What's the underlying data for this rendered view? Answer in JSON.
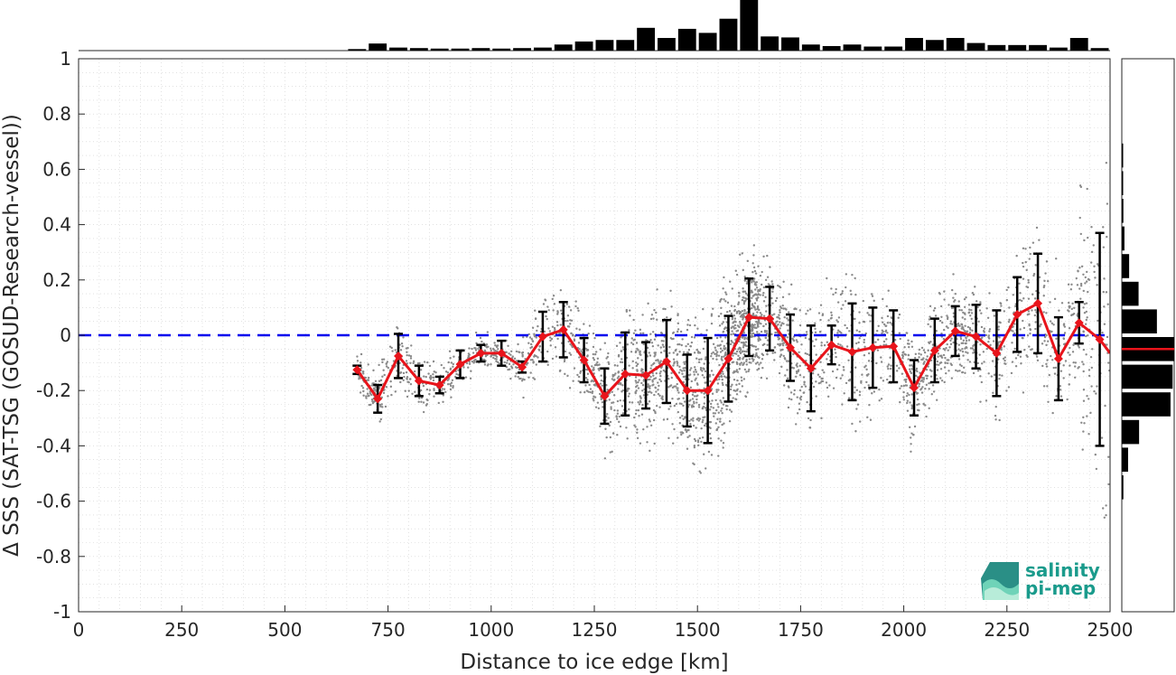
{
  "chart_data": {
    "type": "line",
    "xlabel": "Distance to ice edge [km]",
    "ylabel": "Δ SSS (SAT-TSG (GOSUD-Research-vessel))",
    "xlim": [
      0,
      2500
    ],
    "ylim": [
      -1,
      1
    ],
    "xticks": [
      0,
      250,
      500,
      750,
      1000,
      1250,
      1500,
      1750,
      2000,
      2250,
      2500
    ],
    "yticks": [
      -1,
      -0.8,
      -0.6,
      -0.4,
      -0.2,
      0,
      0.2,
      0.4,
      0.6,
      0.8,
      1
    ],
    "grid": true,
    "zero_line": {
      "y": 0,
      "color": "#0000ee",
      "style": "dashed"
    },
    "mean_series": {
      "color": "#e8141b",
      "x": [
        675,
        725,
        775,
        825,
        875,
        925,
        975,
        1025,
        1075,
        1125,
        1175,
        1225,
        1275,
        1325,
        1375,
        1425,
        1475,
        1525,
        1575,
        1625,
        1675,
        1725,
        1775,
        1825,
        1875,
        1925,
        1975,
        2025,
        2075,
        2125,
        2175,
        2225,
        2275,
        2325,
        2375,
        2425,
        2475,
        2500
      ],
      "y": [
        -0.125,
        -0.23,
        -0.075,
        -0.165,
        -0.18,
        -0.105,
        -0.065,
        -0.065,
        -0.115,
        -0.005,
        0.02,
        -0.09,
        -0.22,
        -0.14,
        -0.145,
        -0.095,
        -0.2,
        -0.2,
        -0.085,
        0.065,
        0.06,
        -0.045,
        -0.12,
        -0.035,
        -0.06,
        -0.045,
        -0.04,
        -0.19,
        -0.055,
        0.015,
        -0.005,
        -0.065,
        0.075,
        0.115,
        -0.085,
        0.045,
        -0.015,
        -0.065
      ],
      "err": [
        0.015,
        0.05,
        0.08,
        0.055,
        0.03,
        0.05,
        0.03,
        0.045,
        0.02,
        0.09,
        0.1,
        0.08,
        0.1,
        0.15,
        0.12,
        0.15,
        0.13,
        0.19,
        0.155,
        0.14,
        0.115,
        0.12,
        0.155,
        0.07,
        0.175,
        0.145,
        0.13,
        0.1,
        0.115,
        0.09,
        0.115,
        0.155,
        0.135,
        0.18,
        0.15,
        0.075,
        0.385,
        0
      ]
    },
    "x_histogram": {
      "bin_centers": [
        675,
        725,
        775,
        825,
        875,
        925,
        975,
        1025,
        1075,
        1125,
        1175,
        1225,
        1275,
        1325,
        1375,
        1425,
        1475,
        1525,
        1575,
        1625,
        1675,
        1725,
        1775,
        1825,
        1875,
        1925,
        1975,
        2025,
        2075,
        2125,
        2175,
        2225,
        2275,
        2325,
        2375,
        2425,
        2475
      ],
      "relative_counts": [
        0.03,
        0.14,
        0.06,
        0.05,
        0.04,
        0.04,
        0.05,
        0.04,
        0.05,
        0.06,
        0.12,
        0.18,
        0.21,
        0.21,
        0.45,
        0.25,
        0.43,
        0.35,
        0.63,
        1.0,
        0.28,
        0.26,
        0.12,
        0.09,
        0.12,
        0.08,
        0.08,
        0.25,
        0.21,
        0.25,
        0.15,
        0.11,
        0.11,
        0.11,
        0.06,
        0.25,
        0.05
      ]
    },
    "y_histogram": {
      "bin_centers": [
        -0.55,
        -0.45,
        -0.35,
        -0.25,
        -0.15,
        -0.05,
        0.05,
        0.15,
        0.25,
        0.35,
        0.45,
        0.55,
        0.65
      ],
      "relative_counts": [
        0.03,
        0.12,
        0.33,
        0.93,
        0.97,
        1.0,
        0.67,
        0.32,
        0.14,
        0.05,
        0.03,
        0.02,
        0.02
      ],
      "mean_line_y": -0.05
    }
  },
  "logo": {
    "line1": "salinity",
    "line2": "pi-mep"
  }
}
